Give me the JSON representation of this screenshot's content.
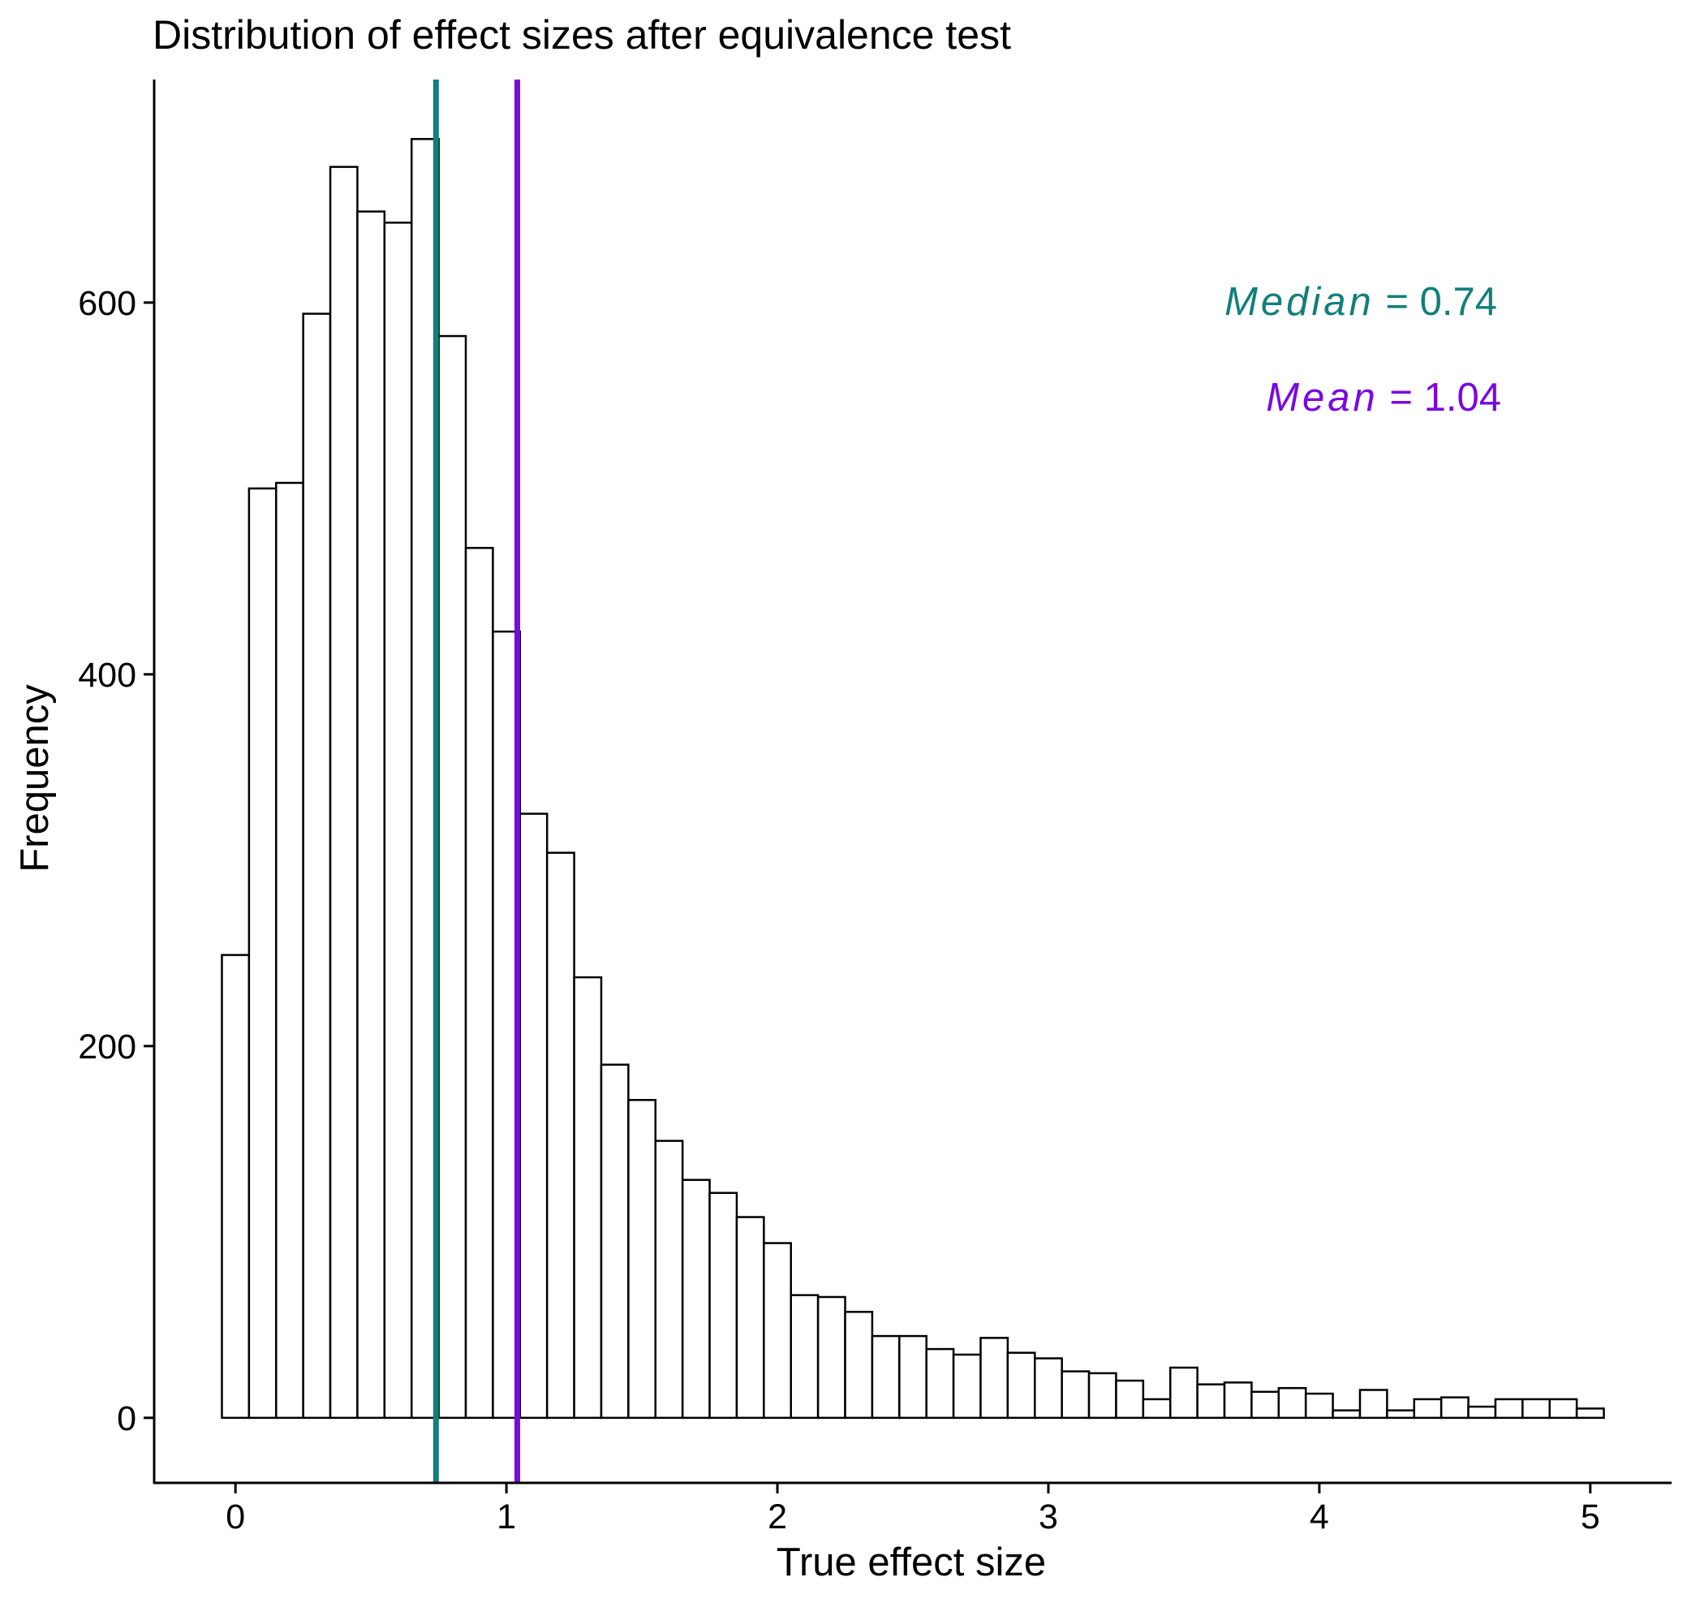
{
  "chart_data": {
    "type": "bar",
    "title": "Distribution of effect sizes after equivalence test",
    "xlabel": "True effect size",
    "ylabel": "Frequency",
    "xlim": [
      -0.3,
      5.3
    ],
    "ylim": [
      -35,
      720
    ],
    "x_ticks": [
      0,
      1,
      2,
      3,
      4,
      5
    ],
    "y_ticks": [
      0,
      200,
      400,
      600
    ],
    "bin_width": 0.1,
    "bin_centers": [
      0.0,
      0.1,
      0.2,
      0.3,
      0.4,
      0.5,
      0.6,
      0.7,
      0.8,
      0.9,
      1.0,
      1.1,
      1.2,
      1.3,
      1.4,
      1.5,
      1.6,
      1.7,
      1.8,
      1.9,
      2.0,
      2.1,
      2.2,
      2.3,
      2.4,
      2.5,
      2.6,
      2.7,
      2.8,
      2.9,
      3.0,
      3.1,
      3.2,
      3.3,
      3.4,
      3.5,
      3.6,
      3.7,
      3.8,
      3.9,
      4.0,
      4.1,
      4.2,
      4.3,
      4.4,
      4.5,
      4.6,
      4.7,
      4.8,
      4.9,
      5.0
    ],
    "values": [
      249,
      500,
      503,
      594,
      673,
      649,
      643,
      688,
      582,
      468,
      423,
      325,
      304,
      237,
      190,
      171,
      149,
      128,
      121,
      108,
      94,
      66,
      65,
      57,
      44,
      44,
      37,
      34,
      43,
      35,
      32,
      25,
      24,
      20,
      10,
      27,
      18,
      19,
      14,
      16,
      13,
      4,
      15,
      4,
      10,
      11,
      6,
      10,
      10,
      10,
      5
    ],
    "grid": false,
    "legend": false,
    "bar_fill": "#ffffff",
    "bar_stroke": "#000000",
    "reference_lines": [
      {
        "value": 0.74,
        "color": "#127F79",
        "label": "Median",
        "label_value": "= 0.74"
      },
      {
        "value": 1.04,
        "color": "#7A08E0",
        "label": "Mean",
        "label_value": "= 1.04"
      }
    ]
  }
}
